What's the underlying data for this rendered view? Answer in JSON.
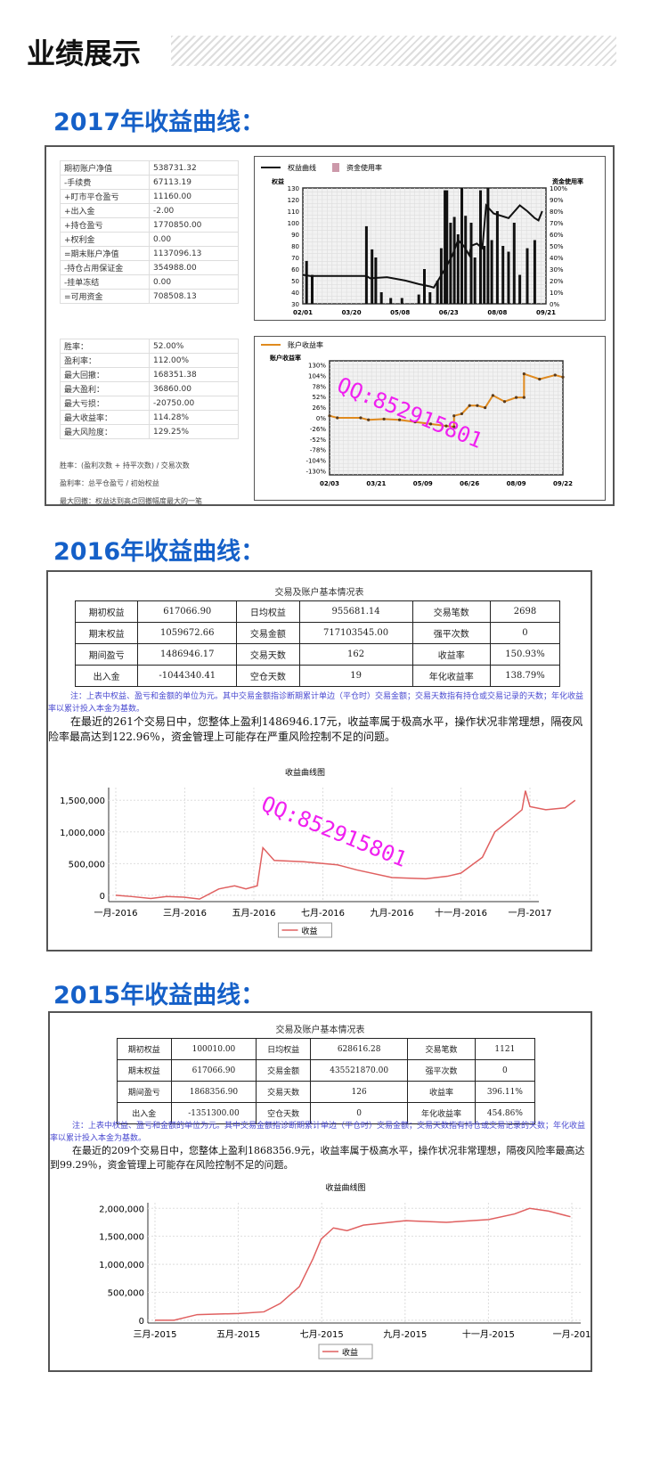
{
  "page": {
    "title": "业绩展示"
  },
  "sections": [
    {
      "heading": "2017年收益曲线："
    },
    {
      "heading": "2016年收益曲线："
    },
    {
      "heading": "2015年收益曲线："
    }
  ],
  "y2017": {
    "account": [
      [
        "期初账户净值",
        "538731.32"
      ],
      [
        "-手续费",
        "67113.19"
      ],
      [
        "+盯市平仓盈亏",
        "11160.00"
      ],
      [
        "+出入金",
        "-2.00"
      ],
      [
        "+持仓盈亏",
        "1770850.00"
      ],
      [
        "+权利金",
        "0.00"
      ],
      [
        "=期末账户净值",
        "1137096.13"
      ],
      [
        "-持仓占用保证金",
        "354988.00"
      ],
      [
        "-挂单冻结",
        "0.00"
      ],
      [
        "=可用资金",
        "708508.13"
      ]
    ],
    "stats": [
      [
        "胜率：",
        "52.00%"
      ],
      [
        "盈利率：",
        "112.00%"
      ],
      [
        "最大回撤：",
        "168351.38"
      ],
      [
        "最大盈利：",
        "36860.00"
      ],
      [
        "最大亏损：",
        "-20750.00"
      ],
      [
        "最大收益率：",
        "114.28%"
      ],
      [
        "最大风险度：",
        "129.25%"
      ]
    ],
    "notes": [
      "胜率：(盈利次数 + 持平次数) / 交易次数",
      "盈利率：总平仓盈亏 / 初始权益",
      "最大回撤：权益达到高点回撤幅度最大的一笔"
    ]
  },
  "y2016": {
    "table_title": "交易及账户基本情况表",
    "rows": [
      [
        "期初权益",
        "617066.90",
        "日均权益",
        "955681.14",
        "交易笔数",
        "2698"
      ],
      [
        "期末权益",
        "1059672.66",
        "交易金额",
        "717103545.00",
        "强平次数",
        "0"
      ],
      [
        "期间盈亏",
        "1486946.17",
        "交易天数",
        "162",
        "收益率",
        "150.93%"
      ],
      [
        "出入金",
        "-1044340.41",
        "空仓天数",
        "19",
        "年化收益率",
        "138.79%"
      ]
    ],
    "note": "注：上表中权益、盈亏和金额的单位为元。其中交易金额指诊断期累计单边（平仓时）交易金额；交易天数指有持仓或交易记录的天数；年化收益率以累计投入本金为基数。",
    "summary": "在最近的261个交易日中，您整体上盈利1486946.17元，收益率属于极高水平，操作状况非常理想，隔夜风险率最高达到122.96％，资金管理上可能存在严重风险控制不足的问题。"
  },
  "y2015": {
    "table_title": "交易及账户基本情况表",
    "rows": [
      [
        "期初权益",
        "100010.00",
        "日均权益",
        "628616.28",
        "交易笔数",
        "1121"
      ],
      [
        "期末权益",
        "617066.90",
        "交易金额",
        "435521870.00",
        "强平次数",
        "0"
      ],
      [
        "期间盈亏",
        "1868356.90",
        "交易天数",
        "126",
        "收益率",
        "396.11%"
      ],
      [
        "出入金",
        "-1351300.00",
        "空仓天数",
        "0",
        "年化收益率",
        "454.86%"
      ]
    ],
    "note": "注：上表中权益、盈亏和金额的单位为元。其中交易金额指诊断期累计单边（平仓时）交易金额；交易天数指有持仓或交易记录的天数；年化收益率以累计投入本金为基数。",
    "summary": "在最近的209个交易日中，您整体上盈利1868356.9元，收益率属于极高水平，操作状况非常理想，隔夜风险率最高达到99.29％，资金管理上可能存在风险控制不足的问题。"
  },
  "watermark": "QQ:852915801",
  "chart_data": [
    {
      "type": "line+bar",
      "legend": [
        "权益曲线",
        "资金使用率"
      ],
      "ylabel": "权益",
      "y2label": "资金使用率",
      "ylim": [
        30,
        130
      ],
      "y2lim": [
        0,
        100
      ],
      "yticks": [
        "130",
        "120",
        "110",
        "100",
        "90",
        "80",
        "70",
        "60",
        "50",
        "40",
        "30"
      ],
      "y2ticks": [
        "100%",
        "90%",
        "80%",
        "70%",
        "60%",
        "50%",
        "40%",
        "30%",
        "20%",
        "10%",
        "0%"
      ],
      "xticks": [
        "02/01",
        "03/20",
        "05/08",
        "06/23",
        "08/08",
        "09/21"
      ],
      "colors": {
        "line": "#111111",
        "bars": "#111111"
      },
      "line": [
        [
          0,
          55
        ],
        [
          0.04,
          54
        ],
        [
          0.34,
          54
        ],
        [
          0.36,
          52
        ],
        [
          0.45,
          53
        ],
        [
          0.55,
          50
        ],
        [
          0.62,
          47
        ],
        [
          0.68,
          45
        ],
        [
          0.7,
          44
        ],
        [
          0.76,
          60
        ],
        [
          0.8,
          72
        ],
        [
          0.83,
          85
        ],
        [
          0.86,
          80
        ],
        [
          0.89,
          72
        ],
        [
          0.9,
          80
        ],
        [
          0.93,
          82
        ],
        [
          0.96,
          78
        ],
        [
          0.98,
          115
        ],
        [
          1.02,
          108
        ],
        [
          1.1,
          104
        ],
        [
          1.16,
          115
        ],
        [
          1.2,
          110
        ],
        [
          1.24,
          104
        ],
        [
          1.26,
          102
        ],
        [
          1.28,
          110
        ]
      ],
      "bars": [
        [
          0.02,
          37
        ],
        [
          0.05,
          25
        ],
        [
          0.34,
          67
        ],
        [
          0.37,
          47
        ],
        [
          0.39,
          40
        ],
        [
          0.42,
          10
        ],
        [
          0.47,
          5
        ],
        [
          0.53,
          5
        ],
        [
          0.62,
          8
        ],
        [
          0.65,
          30
        ],
        [
          0.68,
          10
        ],
        [
          0.72,
          20
        ],
        [
          0.74,
          48
        ],
        [
          0.76,
          98
        ],
        [
          0.77,
          98
        ],
        [
          0.79,
          70
        ],
        [
          0.81,
          75
        ],
        [
          0.83,
          60
        ],
        [
          0.85,
          100
        ],
        [
          0.87,
          76
        ],
        [
          0.9,
          70
        ],
        [
          0.92,
          40
        ],
        [
          0.95,
          98
        ],
        [
          0.97,
          50
        ],
        [
          0.99,
          100
        ],
        [
          1.01,
          55
        ],
        [
          1.04,
          80
        ],
        [
          1.07,
          50
        ],
        [
          1.1,
          45
        ],
        [
          1.13,
          70
        ],
        [
          1.16,
          25
        ],
        [
          1.2,
          48
        ],
        [
          1.24,
          55
        ]
      ],
      "bars_note": "x in months after 02/01 scaled"
    },
    {
      "type": "line",
      "legend": [
        "账户收益率"
      ],
      "ylabel": "账户收益率",
      "ylim": [
        -130,
        130
      ],
      "yticks": [
        "130%",
        "104%",
        "78%",
        "52%",
        "26%",
        "0%",
        "-26%",
        "-52%",
        "-78%",
        "-104%",
        "-130%"
      ],
      "xticks": [
        "02/03",
        "03/21",
        "05/09",
        "06/26",
        "08/09",
        "09/22"
      ],
      "colors": {
        "line": "#e08a1e"
      },
      "x": [
        0,
        0.1,
        0.4,
        0.5,
        0.7,
        0.9,
        1.1,
        1.3,
        1.5,
        1.6,
        1.6,
        1.7,
        1.8,
        1.9,
        2.0,
        2.1,
        2.25,
        2.4,
        2.5,
        2.5,
        2.7,
        2.9,
        3.0
      ],
      "y": [
        5,
        0,
        0,
        -5,
        -3,
        -5,
        -10,
        -15,
        -20,
        -22,
        5,
        10,
        30,
        30,
        25,
        55,
        40,
        50,
        50,
        108,
        95,
        105,
        100
      ]
    },
    {
      "type": "line",
      "title": "收益曲线图",
      "legend": [
        "收益"
      ],
      "ylim": [
        -100000,
        1700000
      ],
      "yticks": [
        "1,500,000",
        "1,000,000",
        "500,000",
        "0"
      ],
      "xticks": [
        "一月-2016",
        "三月-2016",
        "五月-2016",
        "七月-2016",
        "九月-2016",
        "十一月-2016",
        "一月-2017"
      ],
      "colors": {
        "line": "#e06060"
      },
      "x": [
        "2016-01-01",
        "2016-01-15",
        "2016-02-01",
        "2016-02-15",
        "2016-03-01",
        "2016-03-15",
        "2016-04-01",
        "2016-04-15",
        "2016-04-25",
        "2016-05-05",
        "2016-05-10",
        "2016-05-20",
        "2016-06-15",
        "2016-07-15",
        "2016-08-01",
        "2016-09-01",
        "2016-10-01",
        "2016-10-20",
        "2016-11-01",
        "2016-11-20",
        "2016-12-01",
        "2016-12-15",
        "2016-12-25",
        "2016-12-28",
        "2017-01-01",
        "2017-01-15",
        "2017-02-01",
        "2017-02-10"
      ],
      "y": [
        0,
        -20000,
        -50000,
        -20000,
        -30000,
        -60000,
        100000,
        150000,
        100000,
        150000,
        750000,
        550000,
        530000,
        480000,
        400000,
        280000,
        260000,
        300000,
        350000,
        600000,
        1000000,
        1200000,
        1350000,
        1650000,
        1400000,
        1350000,
        1380000,
        1500000
      ]
    },
    {
      "type": "line",
      "title": "收益曲线图",
      "legend": [
        "收益"
      ],
      "ylim": [
        -50000,
        2100000
      ],
      "yticks": [
        "2,000,000",
        "1,500,000",
        "1,000,000",
        "500,000",
        "0"
      ],
      "xticks": [
        "三月-2015",
        "五月-2015",
        "七月-2015",
        "九月-2015",
        "十一月-2015",
        "一月-201"
      ],
      "colors": {
        "line": "#e06060"
      },
      "x": [
        "2015-03-01",
        "2015-03-15",
        "2015-04-01",
        "2015-05-01",
        "2015-05-20",
        "2015-06-01",
        "2015-06-15",
        "2015-06-25",
        "2015-07-01",
        "2015-07-10",
        "2015-07-20",
        "2015-08-01",
        "2015-09-01",
        "2015-10-01",
        "2015-11-01",
        "2015-11-20",
        "2015-12-01",
        "2015-12-15",
        "2015-12-31"
      ],
      "y": [
        0,
        0,
        100000,
        120000,
        150000,
        300000,
        600000,
        1100000,
        1450000,
        1650000,
        1600000,
        1700000,
        1780000,
        1750000,
        1800000,
        1900000,
        2000000,
        1950000,
        1850000
      ]
    }
  ]
}
